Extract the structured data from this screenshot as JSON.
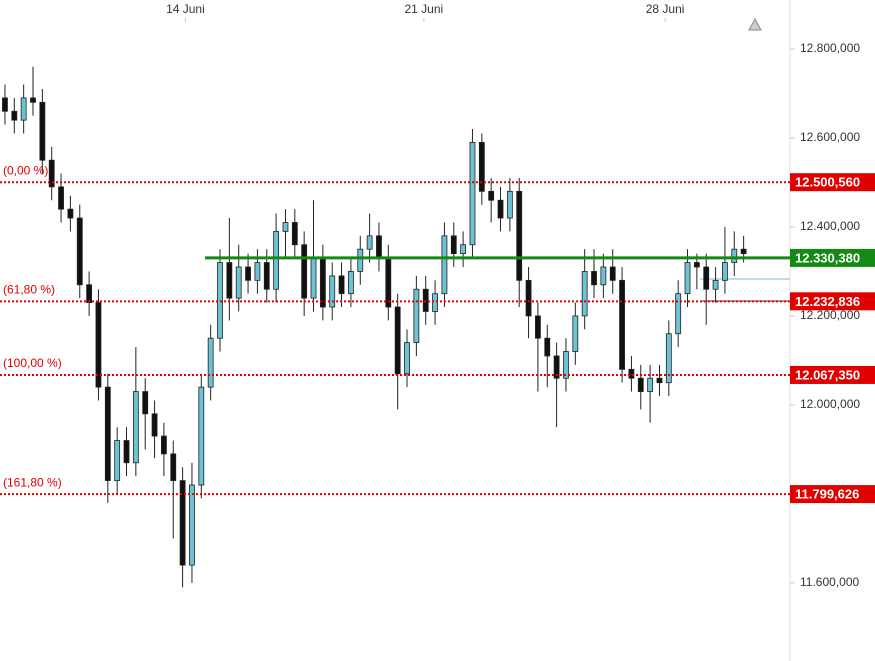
{
  "chart_data": {
    "type": "candlestick",
    "up_color": "#6cc3d3",
    "down_color": "#111111",
    "xlim": [
      -0.53,
      83.96
    ],
    "ylim": [
      11.438,
      12.91
    ],
    "xticks": [
      {
        "value": 19.3,
        "label": "14 Juni"
      },
      {
        "value": 44.8,
        "label": "21 Juni"
      },
      {
        "value": 70.6,
        "label": "28 Juni"
      }
    ],
    "yticks": [
      {
        "value": 11.6,
        "label": "11.600,000"
      },
      {
        "value": 11.8,
        "label": "11.800,000"
      },
      {
        "value": 12.0,
        "label": "12.000,000"
      },
      {
        "value": 12.2,
        "label": "12.200,000"
      },
      {
        "value": 12.4,
        "label": "12.400,000"
      },
      {
        "value": 12.6,
        "label": "12.600,000"
      },
      {
        "value": 12.8,
        "label": "12.800,000"
      }
    ],
    "open": [
      12.69,
      12.66,
      12.64,
      12.69,
      12.68,
      12.55,
      12.49,
      12.44,
      12.42,
      12.27,
      12.23,
      12.04,
      11.83,
      11.92,
      11.87,
      12.03,
      11.98,
      11.93,
      11.89,
      11.83,
      11.64,
      11.82,
      12.04,
      12.15,
      12.32,
      12.24,
      12.31,
      12.28,
      12.32,
      12.26,
      12.39,
      12.41,
      12.36,
      12.24,
      12.33,
      12.22,
      12.29,
      12.25,
      12.3,
      12.35,
      12.38,
      12.33,
      12.22,
      12.07,
      12.14,
      12.26,
      12.21,
      12.25,
      12.38,
      12.34,
      12.36,
      12.59,
      12.48,
      12.46,
      12.42,
      12.48,
      12.28,
      12.2,
      12.15,
      12.11,
      12.06,
      12.12,
      12.2,
      12.3,
      12.27,
      12.31,
      12.28,
      12.08,
      12.06,
      12.03,
      12.06,
      12.05,
      12.16,
      12.25,
      12.32,
      12.31,
      12.26,
      12.28,
      12.32,
      12.35
    ],
    "high": [
      12.72,
      12.69,
      12.72,
      12.76,
      12.71,
      12.58,
      12.52,
      12.47,
      12.45,
      12.3,
      12.26,
      12.07,
      11.95,
      11.95,
      12.13,
      12.06,
      12.01,
      11.96,
      11.92,
      11.86,
      11.87,
      12.07,
      12.18,
      12.35,
      12.42,
      12.36,
      12.34,
      12.35,
      12.35,
      12.43,
      12.44,
      12.44,
      12.39,
      12.46,
      12.36,
      12.32,
      12.32,
      12.33,
      12.38,
      12.43,
      12.41,
      12.36,
      12.25,
      12.17,
      12.29,
      12.29,
      12.28,
      12.41,
      12.41,
      12.39,
      12.62,
      12.61,
      12.51,
      12.49,
      12.51,
      12.51,
      12.31,
      12.23,
      12.18,
      12.14,
      12.15,
      12.23,
      12.35,
      12.35,
      12.34,
      12.35,
      12.31,
      12.11,
      12.09,
      12.09,
      12.09,
      12.19,
      12.28,
      12.35,
      12.34,
      12.34,
      12.31,
      12.4,
      12.39,
      12.38
    ],
    "low": [
      12.63,
      12.61,
      12.61,
      12.65,
      12.52,
      12.46,
      12.41,
      12.39,
      12.24,
      12.2,
      12.01,
      11.78,
      11.8,
      11.84,
      11.84,
      11.9,
      11.88,
      11.84,
      11.7,
      11.59,
      11.6,
      11.79,
      12.01,
      12.12,
      12.19,
      12.21,
      12.25,
      12.25,
      12.23,
      12.23,
      12.33,
      12.33,
      12.2,
      12.21,
      12.19,
      12.19,
      12.22,
      12.22,
      12.27,
      12.32,
      12.3,
      12.19,
      11.99,
      12.04,
      12.11,
      12.18,
      12.18,
      12.22,
      12.31,
      12.31,
      12.33,
      12.45,
      12.41,
      12.39,
      12.39,
      12.22,
      12.15,
      12.03,
      12.04,
      11.95,
      12.03,
      12.09,
      12.17,
      12.24,
      12.24,
      12.25,
      12.05,
      12.03,
      11.99,
      11.96,
      12.02,
      12.02,
      12.13,
      12.22,
      12.26,
      12.18,
      12.23,
      12.25,
      12.29,
      12.32
    ],
    "close": [
      12.66,
      12.64,
      12.69,
      12.68,
      12.55,
      12.49,
      12.44,
      12.42,
      12.27,
      12.23,
      12.04,
      11.83,
      11.92,
      11.87,
      12.03,
      11.98,
      11.93,
      11.89,
      11.83,
      11.64,
      11.82,
      12.04,
      12.15,
      12.32,
      12.24,
      12.31,
      12.28,
      12.32,
      12.26,
      12.39,
      12.41,
      12.36,
      12.24,
      12.33,
      12.22,
      12.29,
      12.25,
      12.3,
      12.35,
      12.38,
      12.33,
      12.22,
      12.07,
      12.14,
      12.26,
      12.21,
      12.25,
      12.38,
      12.34,
      12.36,
      12.59,
      12.48,
      12.46,
      12.42,
      12.48,
      12.28,
      12.2,
      12.15,
      12.11,
      12.06,
      12.12,
      12.2,
      12.3,
      12.27,
      12.31,
      12.28,
      12.08,
      12.06,
      12.03,
      12.06,
      12.05,
      12.16,
      12.25,
      12.32,
      12.31,
      12.26,
      12.28,
      12.32,
      12.35,
      12.34
    ],
    "levels": [
      {
        "value": 12.50056,
        "label": "12.500,560",
        "fib": "(0,00 %)",
        "color": "#e00000"
      },
      {
        "value": 12.33038,
        "label": "12.330,380",
        "color": "#138a13",
        "x_start": 21.4
      },
      {
        "value": 12.232836,
        "label": "12.232,836",
        "fib": "(61,80 %)",
        "color": "#e00000"
      },
      {
        "value": 12.06735,
        "label": "12.067,350",
        "fib": "(100,00 %)",
        "color": "#e00000"
      },
      {
        "value": 11.799626,
        "label": "11.799,626",
        "fib": "(161,80 %)",
        "color": "#e00000"
      }
    ]
  }
}
